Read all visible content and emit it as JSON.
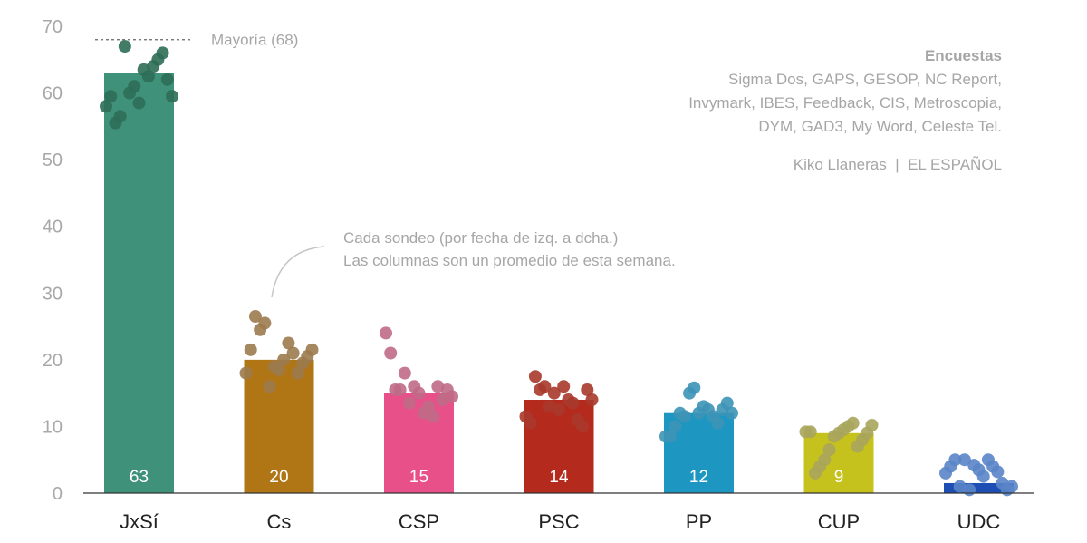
{
  "chart_data": {
    "type": "bar",
    "ylim": [
      0,
      70
    ],
    "yticks": [
      "0",
      "10",
      "20",
      "30",
      "40",
      "50",
      "60",
      "70"
    ],
    "grid": true,
    "categories": [
      "JxSí",
      "Cs",
      "CSP",
      "PSC",
      "PP",
      "CUP",
      "UDC"
    ],
    "values": [
      63,
      20,
      15,
      14,
      12,
      9,
      1.5
    ],
    "value_labels": [
      "63",
      "20",
      "15",
      "14",
      "12",
      "9",
      ""
    ],
    "colors": [
      "#3f9279",
      "#b07616",
      "#e8508a",
      "#b42a1c",
      "#1d97c1",
      "#c5c21d",
      "#1d4eb4"
    ],
    "dot_colors": [
      "#2e6e56",
      "#9b7b4e",
      "#c06a86",
      "#a8382c",
      "#3d94b6",
      "#a9a55c",
      "#5a85c8"
    ],
    "polls": [
      [
        58,
        59.5,
        55.5,
        56.5,
        67,
        60,
        61,
        58.5,
        63.5,
        62.5,
        64,
        65,
        66,
        62,
        59.5
      ],
      [
        18,
        21.5,
        26.5,
        24.5,
        25.5,
        16,
        19,
        18.5,
        20,
        22.5,
        21,
        18,
        19.5,
        20.5,
        21.5
      ],
      [
        24,
        21,
        15.5,
        15.5,
        18,
        13.5,
        16,
        15,
        12,
        13,
        11.5,
        16,
        14,
        15.5,
        14.5
      ],
      [
        11.5,
        10.5,
        17.5,
        15.5,
        16,
        13,
        15,
        12.5,
        16,
        14,
        13.5,
        11,
        10,
        15.5,
        14
      ],
      [
        8.5,
        8.5,
        10,
        12,
        11.5,
        15,
        15.8,
        12,
        13,
        12.5,
        11.5,
        10.5,
        12.5,
        13.5,
        12
      ],
      [
        9.2,
        9.2,
        3,
        4,
        5,
        6.5,
        8.5,
        9,
        9.5,
        10,
        10.5,
        7,
        8,
        9,
        10.2
      ],
      [
        3,
        4,
        5,
        1,
        5,
        0.5,
        4.2,
        3.5,
        2.5,
        5,
        4,
        3.2,
        1.5,
        0.5,
        1
      ]
    ],
    "majority": {
      "value": 68,
      "label": "Mayoría (68)"
    }
  },
  "annotations": {
    "sources_title": "Encuestas",
    "sources_lines": [
      "Sigma Dos, GAPS, GESOP, NC Report,",
      "Invymark, IBES, Feedback, CIS, Metroscopia,",
      "DYM, GAD3, My Word, Celeste Tel."
    ],
    "credit": "Kiko Llaneras  |  EL ESPAÑOL",
    "note_lines": [
      "Cada sondeo (por fecha de izq. a dcha.)",
      "Las columnas son un promedio de esta semana."
    ]
  }
}
